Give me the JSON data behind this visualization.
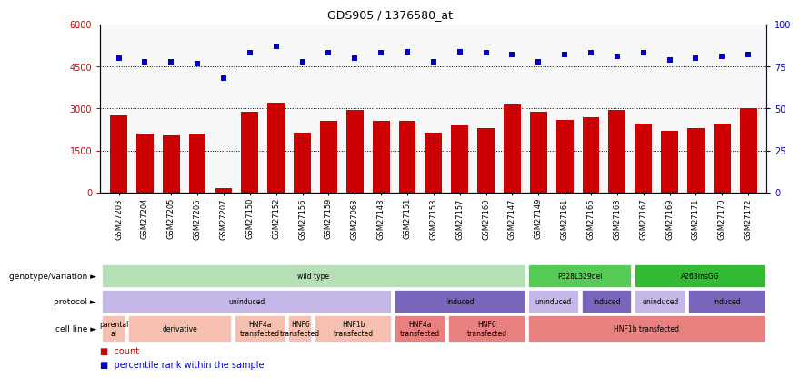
{
  "title": "GDS905 / 1376580_at",
  "samples": [
    "GSM27203",
    "GSM27204",
    "GSM27205",
    "GSM27206",
    "GSM27207",
    "GSM27150",
    "GSM27152",
    "GSM27156",
    "GSM27159",
    "GSM27063",
    "GSM27148",
    "GSM27151",
    "GSM27153",
    "GSM27157",
    "GSM27160",
    "GSM27147",
    "GSM27149",
    "GSM27161",
    "GSM27165",
    "GSM27163",
    "GSM27167",
    "GSM27169",
    "GSM27171",
    "GSM27170",
    "GSM27172"
  ],
  "counts": [
    2750,
    2100,
    2050,
    2100,
    150,
    2900,
    3200,
    2150,
    2550,
    2950,
    2550,
    2550,
    2150,
    2400,
    2300,
    3150,
    2900,
    2600,
    2700,
    2950,
    2450,
    2200,
    2300,
    2450,
    3000
  ],
  "percentile": [
    80,
    78,
    78,
    77,
    68,
    83,
    87,
    78,
    83,
    80,
    83,
    84,
    78,
    84,
    83,
    82,
    78,
    82,
    83,
    81,
    83,
    79,
    80,
    81,
    82
  ],
  "bar_color": "#cc0000",
  "dot_color": "#0000cc",
  "ylim_left": [
    0,
    6000
  ],
  "ylim_right": [
    0,
    100
  ],
  "yticks_left": [
    0,
    1500,
    3000,
    4500,
    6000
  ],
  "yticks_right": [
    0,
    25,
    50,
    75,
    100
  ],
  "grid_values": [
    1500,
    3000,
    4500
  ],
  "annotation_rows": [
    {
      "label": "genotype/variation",
      "segments": [
        {
          "text": "wild type",
          "start": 0,
          "end": 16,
          "color": "#b5e0b5",
          "text_color": "#000000"
        },
        {
          "text": "P328L329del",
          "start": 16,
          "end": 20,
          "color": "#55cc55",
          "text_color": "#000000"
        },
        {
          "text": "A263insGG",
          "start": 20,
          "end": 25,
          "color": "#33bb33",
          "text_color": "#000000"
        }
      ]
    },
    {
      "label": "protocol",
      "segments": [
        {
          "text": "uninduced",
          "start": 0,
          "end": 11,
          "color": "#c5b8e8",
          "text_color": "#000000"
        },
        {
          "text": "induced",
          "start": 11,
          "end": 16,
          "color": "#7766bb",
          "text_color": "#000000"
        },
        {
          "text": "uninduced",
          "start": 16,
          "end": 18,
          "color": "#c5b8e8",
          "text_color": "#000000"
        },
        {
          "text": "induced",
          "start": 18,
          "end": 20,
          "color": "#7766bb",
          "text_color": "#000000"
        },
        {
          "text": "uninduced",
          "start": 20,
          "end": 22,
          "color": "#c5b8e8",
          "text_color": "#000000"
        },
        {
          "text": "induced",
          "start": 22,
          "end": 25,
          "color": "#7766bb",
          "text_color": "#000000"
        }
      ]
    },
    {
      "label": "cell line",
      "segments": [
        {
          "text": "parental\nal",
          "start": 0,
          "end": 1,
          "color": "#f5c0b0",
          "text_color": "#000000"
        },
        {
          "text": "derivative",
          "start": 1,
          "end": 5,
          "color": "#f5c0b0",
          "text_color": "#000000"
        },
        {
          "text": "HNF4a\ntransfected",
          "start": 5,
          "end": 7,
          "color": "#f5c0b0",
          "text_color": "#000000"
        },
        {
          "text": "HNF6\ntransfected",
          "start": 7,
          "end": 8,
          "color": "#f5c0b0",
          "text_color": "#000000"
        },
        {
          "text": "HNF1b\ntransfected",
          "start": 8,
          "end": 11,
          "color": "#f5c0b0",
          "text_color": "#000000"
        },
        {
          "text": "HNF4a\ntransfected",
          "start": 11,
          "end": 13,
          "color": "#e88080",
          "text_color": "#000000"
        },
        {
          "text": "HNF6\ntransfected",
          "start": 13,
          "end": 16,
          "color": "#e88080",
          "text_color": "#000000"
        },
        {
          "text": "HNF1b transfected",
          "start": 16,
          "end": 25,
          "color": "#e88080",
          "text_color": "#000000"
        }
      ]
    }
  ],
  "legend": [
    {
      "color": "#cc0000",
      "label": "count"
    },
    {
      "color": "#0000cc",
      "label": "percentile rank within the sample"
    }
  ]
}
